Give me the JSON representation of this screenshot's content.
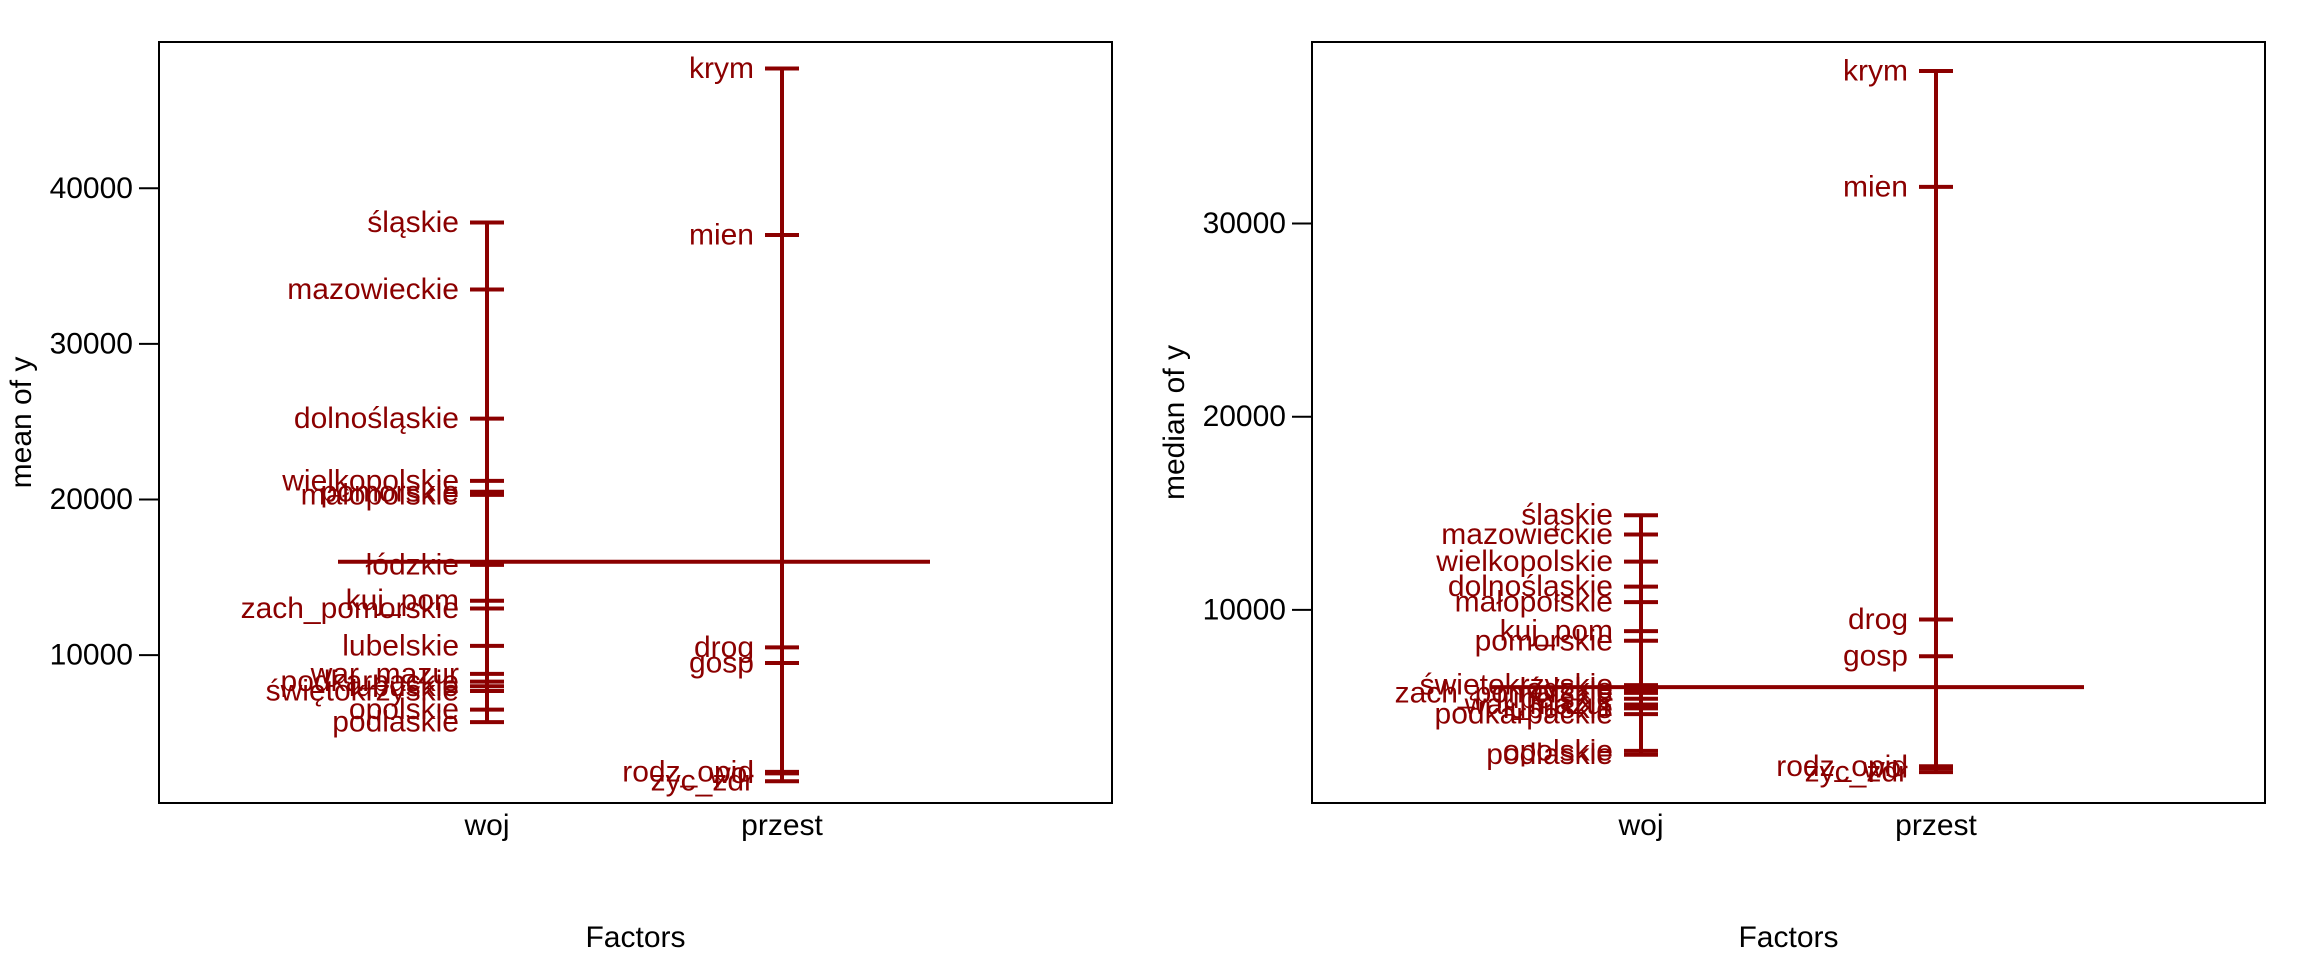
{
  "colors": {
    "marks": "#8b0000",
    "axes": "#000000",
    "background": "#ffffff"
  },
  "chart_data": [
    {
      "type": "design-plot",
      "xlabel": "Factors",
      "ylabel": "mean of y",
      "ylim": [
        500,
        49400
      ],
      "yticks": [
        {
          "value": 10000,
          "label": "10000"
        },
        {
          "value": 20000,
          "label": "20000"
        },
        {
          "value": 30000,
          "label": "30000"
        },
        {
          "value": 40000,
          "label": "40000"
        }
      ],
      "grand_value": 16000,
      "factors": [
        {
          "name": "woj",
          "levels": [
            {
              "label": "śląskie",
              "value": 37800
            },
            {
              "label": "mazowieckie",
              "value": 33500
            },
            {
              "label": "dolnośląskie",
              "value": 25200
            },
            {
              "label": "wielkopolskie",
              "value": 21200
            },
            {
              "label": "pomorskie",
              "value": 20500
            },
            {
              "label": "małopolskie",
              "value": 20300
            },
            {
              "label": "łódzkie",
              "value": 15800
            },
            {
              "label": "kuj_pom",
              "value": 13500
            },
            {
              "label": "zach_pomorskie",
              "value": 13000
            },
            {
              "label": "lubelskie",
              "value": 10600
            },
            {
              "label": "war_mazur",
              "value": 8800
            },
            {
              "label": "podkarpackie",
              "value": 8300
            },
            {
              "label": "lubuskie",
              "value": 8000
            },
            {
              "label": "świętokrzyskie",
              "value": 7700
            },
            {
              "label": "opolskie",
              "value": 6500
            },
            {
              "label": "podlaskie",
              "value": 5700
            }
          ]
        },
        {
          "name": "przest",
          "levels": [
            {
              "label": "krym",
              "value": 47700
            },
            {
              "label": "mien",
              "value": 37000
            },
            {
              "label": "drog",
              "value": 10500
            },
            {
              "label": "gosp",
              "value": 9500
            },
            {
              "label": "rodz_opid",
              "value": 2500
            },
            {
              "label": "wol",
              "value": 2400
            },
            {
              "label": "zyc_zdr",
              "value": 1900
            }
          ]
        }
      ]
    },
    {
      "type": "design-plot",
      "xlabel": "Factors",
      "ylabel": "median of y",
      "ylim": [
        0,
        39400
      ],
      "yticks": [
        {
          "value": 10000,
          "label": "10000"
        },
        {
          "value": 20000,
          "label": "20000"
        },
        {
          "value": 30000,
          "label": "30000"
        }
      ],
      "grand_value": 6000,
      "factors": [
        {
          "name": "woj",
          "levels": [
            {
              "label": "śląskie",
              "value": 14900
            },
            {
              "label": "mazowieckie",
              "value": 13900
            },
            {
              "label": "wielkopolskie",
              "value": 12500
            },
            {
              "label": "dolnośląskie",
              "value": 11200
            },
            {
              "label": "małopolskie",
              "value": 10400
            },
            {
              "label": "kuj_pom",
              "value": 8900
            },
            {
              "label": "pomorskie",
              "value": 8400
            },
            {
              "label": "świętokrzyskie",
              "value": 6100
            },
            {
              "label": "łódzkie",
              "value": 5900
            },
            {
              "label": "zach_pomorskie",
              "value": 5700
            },
            {
              "label": "lubelskie",
              "value": 5400
            },
            {
              "label": "war_mazur",
              "value": 5100
            },
            {
              "label": "lubuskie",
              "value": 4900
            },
            {
              "label": "podkarpackie",
              "value": 4600
            },
            {
              "label": "opolskie",
              "value": 2700
            },
            {
              "label": "podlaskie",
              "value": 2500
            }
          ]
        },
        {
          "name": "przest",
          "levels": [
            {
              "label": "krym",
              "value": 37900
            },
            {
              "label": "mien",
              "value": 31900
            },
            {
              "label": "drog",
              "value": 9500
            },
            {
              "label": "gosp",
              "value": 7600
            },
            {
              "label": "rodz_opid",
              "value": 1900
            },
            {
              "label": "wol",
              "value": 1800
            },
            {
              "label": "zyc_zdr",
              "value": 1600
            }
          ]
        }
      ]
    }
  ]
}
